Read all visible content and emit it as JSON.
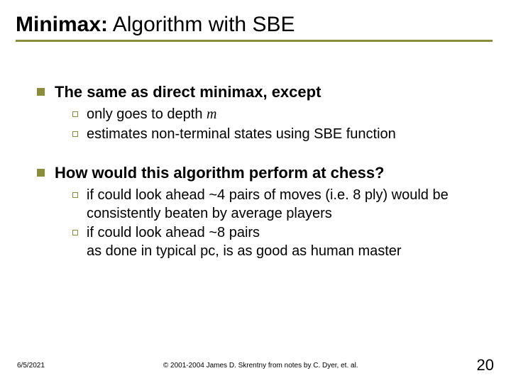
{
  "title_bold": "Minimax:",
  "title_rest": " Algorithm with SBE",
  "colors": {
    "accent": "#8a8d3a",
    "text": "#000000",
    "background": "#ffffff"
  },
  "typography": {
    "title_fontsize": 30,
    "level1_fontsize": 22,
    "level2_fontsize": 20,
    "footer_fontsize": 10,
    "page_number_fontsize": 22
  },
  "bullets": [
    {
      "text": "The same as direct minimax, except",
      "sub": [
        {
          "pre": "only goes to depth ",
          "ital": "m",
          "post": ""
        },
        {
          "pre": "estimates non-terminal states using SBE function",
          "ital": "",
          "post": ""
        }
      ]
    },
    {
      "text": "How would this algorithm perform at chess?",
      "sub": [
        {
          "pre": "if could look ahead ~4 pairs of moves (i.e. 8 ply) would be consistently beaten by average players",
          "ital": "",
          "post": ""
        },
        {
          "pre": "if could look ahead ~8 pairs\nas done in typical pc, is as good as human master",
          "ital": "",
          "post": ""
        }
      ]
    }
  ],
  "footer": {
    "date": "6/5/2021",
    "copyright": "© 2001-2004 James D. Skrentny from notes by C. Dyer, et. al.",
    "page": "20"
  }
}
